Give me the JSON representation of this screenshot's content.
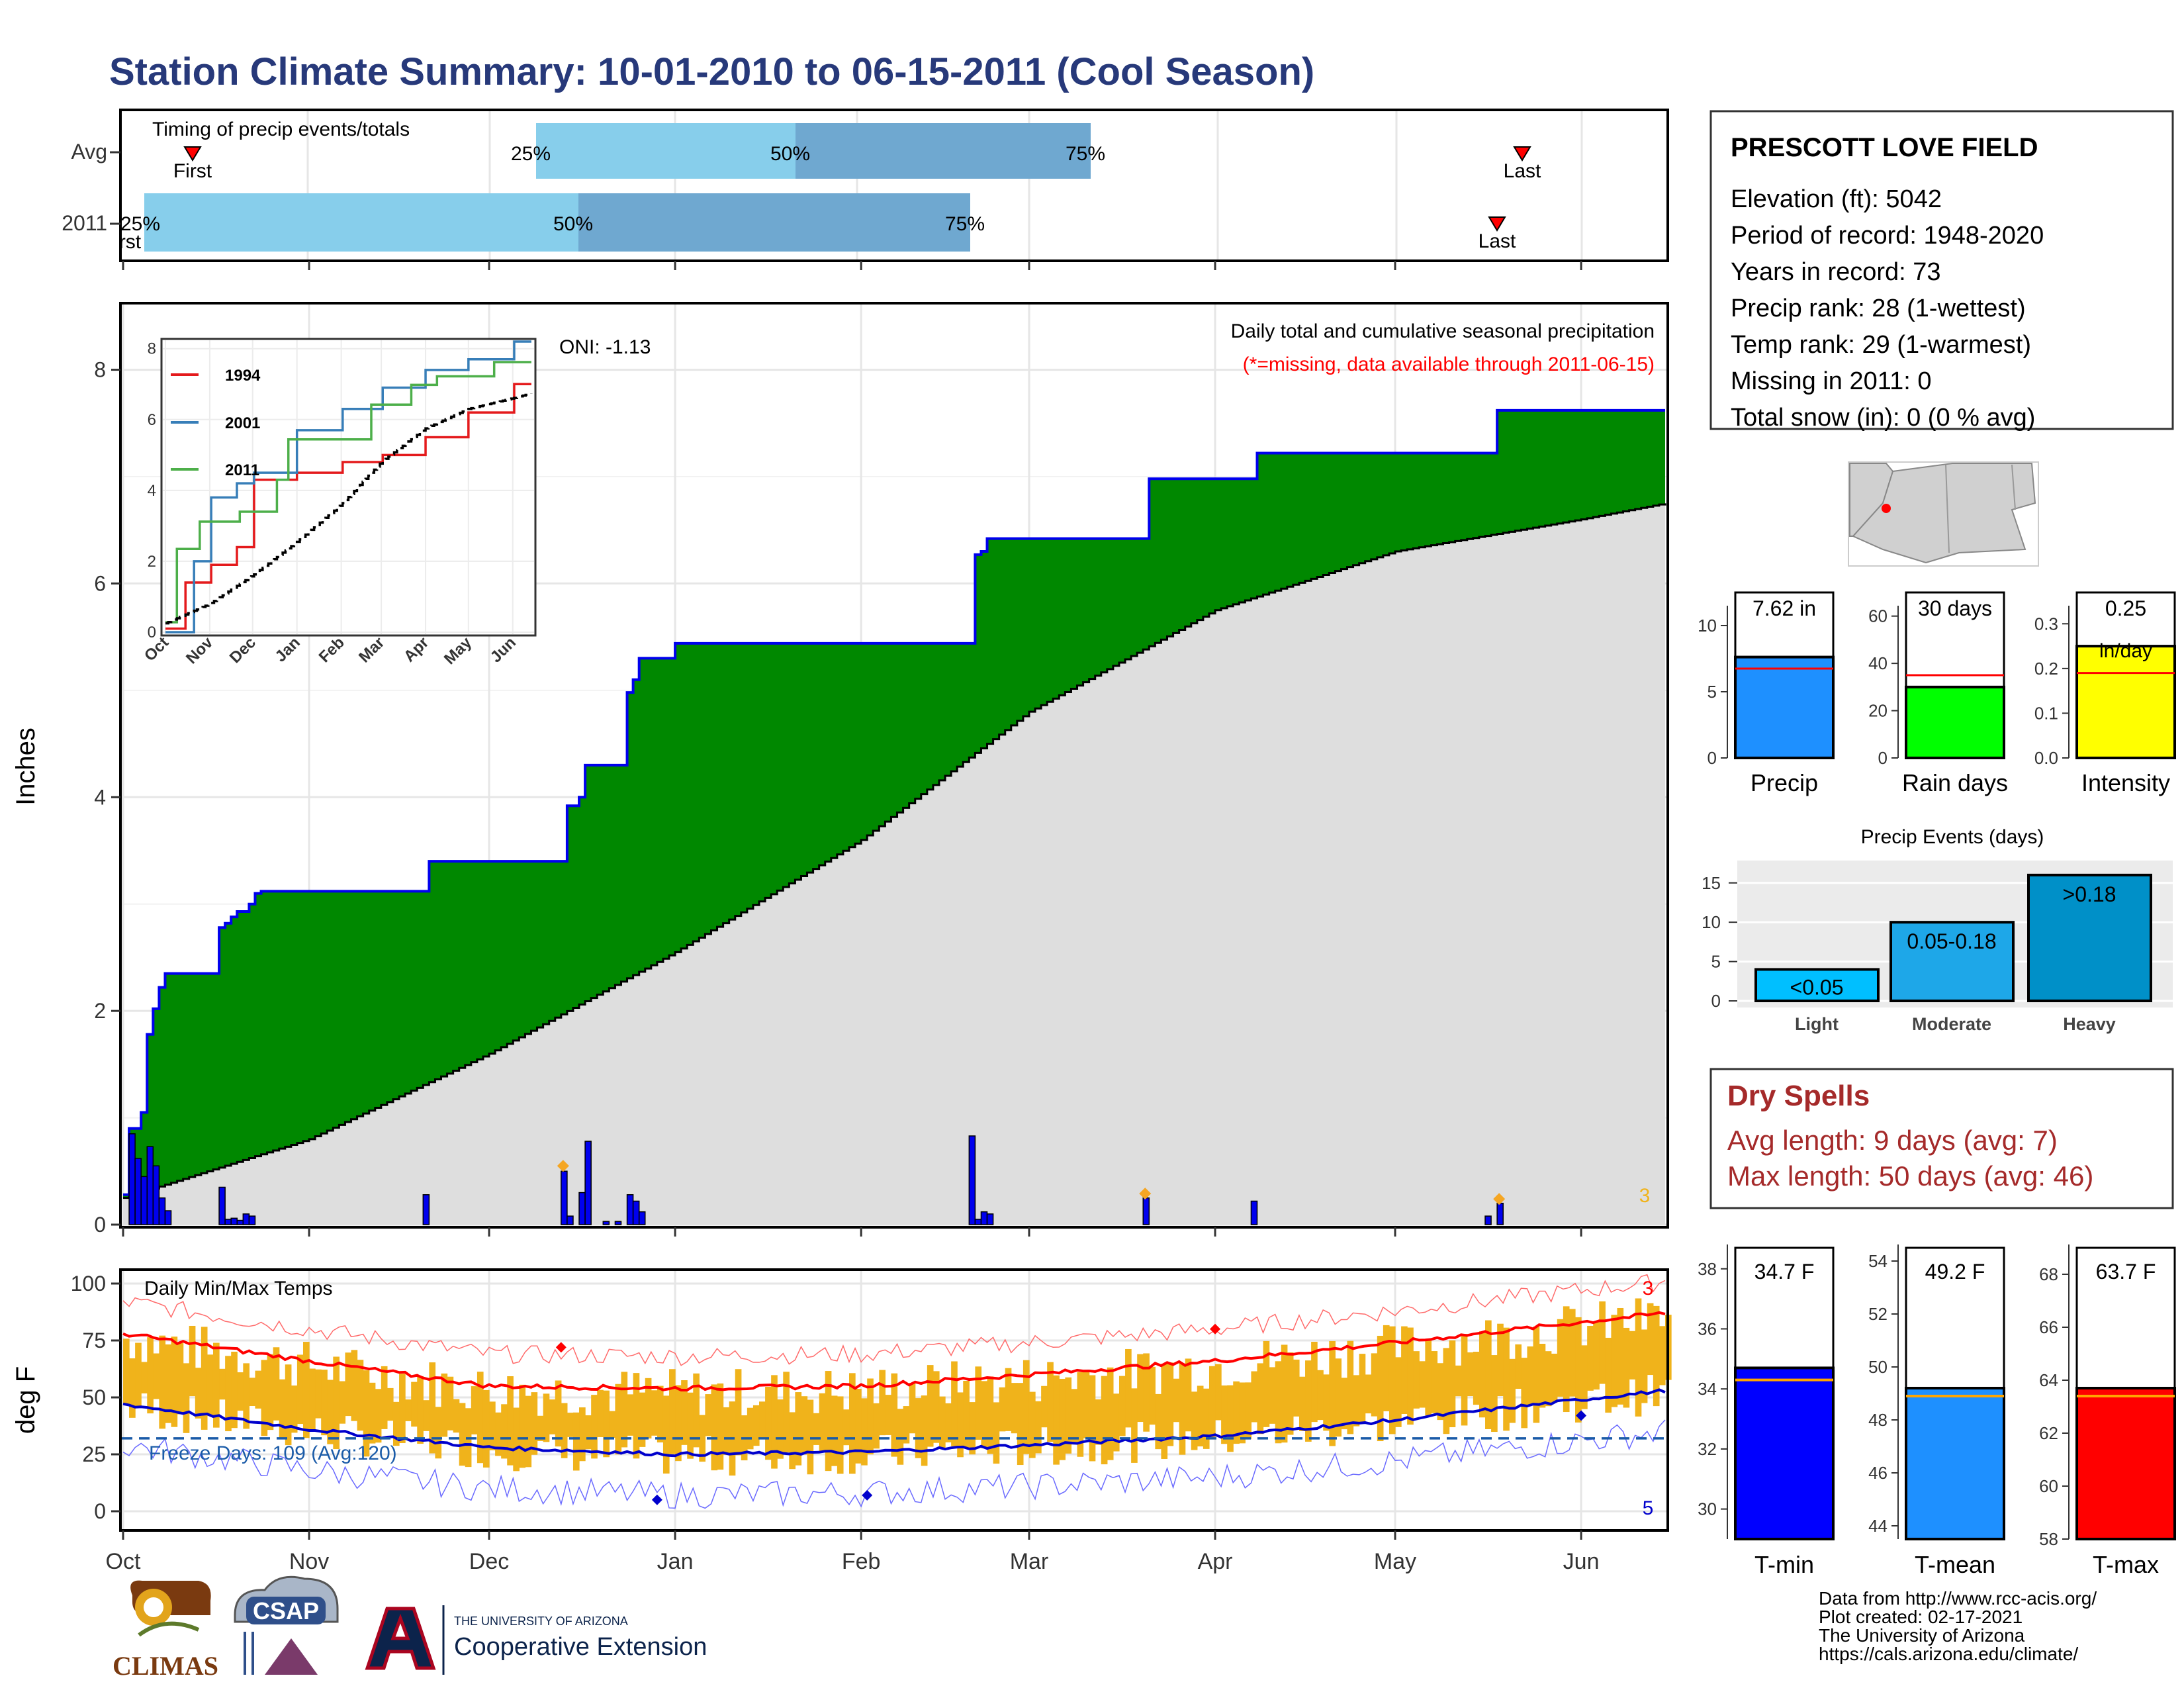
{
  "title": "Station Climate Summary: 10-01-2010 to 06-15-2011 (Cool Season)",
  "colors": {
    "title": "#27397a",
    "green": "#008800",
    "blue_line": "#0000ee",
    "grey_fill": "#dedede",
    "light_blue": "#87ceeb",
    "mid_blue": "#6fa8d0",
    "orange": "#f0b31b",
    "red": "#ff0000",
    "darkred": "#a52a2a"
  },
  "timing": {
    "label": "Timing of precip events/totals",
    "rows": [
      "Avg",
      "2011"
    ],
    "avg": {
      "q25": "25%",
      "q50": "50%",
      "q75": "75%",
      "first": "First",
      "last": "Last"
    },
    "y2011": {
      "q25": "25%",
      "q50": "50%",
      "q75": "75%",
      "first": "First",
      "last": "Last"
    }
  },
  "station": {
    "name": "PRESCOTT LOVE FIELD",
    "lines": [
      "Elevation (ft): 5042",
      "Period of record: 1948-2020",
      "Years in record: 73",
      "Precip rank: 28 (1-wettest)",
      "Temp rank: 29 (1-warmest)",
      "Missing in 2011: 0",
      "Total snow (in): 0 (0 % avg)"
    ]
  },
  "precip_panel": {
    "ylabel": "Inches",
    "heading": "Daily total and cumulative seasonal precipitation",
    "note": "(*=missing, data available through 2011-06-15)",
    "oni": "ONI: -1.13",
    "corner_count": "3",
    "y_ticks": [
      "0",
      "2",
      "4",
      "6",
      "8"
    ]
  },
  "temp_panel": {
    "ylabel": "deg F",
    "heading": "Daily Min/Max Temps",
    "freeze": "Freeze Days: 109 (Avg:120)",
    "count_top": "3",
    "count_bottom": "5",
    "y_ticks": [
      "0",
      "25",
      "50",
      "75",
      "100"
    ]
  },
  "months": [
    "Oct",
    "Nov",
    "Dec",
    "Jan",
    "Feb",
    "Mar",
    "Apr",
    "May",
    "Jun"
  ],
  "inset": {
    "legend": [
      "1994",
      "2001",
      "2011"
    ],
    "y_ticks": [
      "0",
      "2",
      "4",
      "6",
      "8"
    ],
    "months": [
      "Oct",
      "Nov",
      "Dec",
      "Jan",
      "Feb",
      "Mar",
      "Apr",
      "May",
      "Jun"
    ]
  },
  "summary_bars": [
    {
      "label": "Precip",
      "value_text": "7.62 in",
      "ticks": [
        "0",
        "5",
        "10"
      ]
    },
    {
      "label": "Rain days",
      "value_text": "30 days",
      "ticks": [
        "0",
        "20",
        "40",
        "60"
      ]
    },
    {
      "label": "Intensity",
      "value_text": "0.25",
      "value_unit": "in/day",
      "ticks": [
        "0.0",
        "0.1",
        "0.2",
        "0.3"
      ]
    }
  ],
  "events": {
    "title": "Precip Events (days)",
    "ticks": [
      "0",
      "5",
      "10",
      "15"
    ],
    "bars": [
      {
        "cat": "Light",
        "label": "<0.05"
      },
      {
        "cat": "Moderate",
        "label": "0.05-0.18"
      },
      {
        "cat": "Heavy",
        "label": ">0.18"
      }
    ]
  },
  "dry_spells": {
    "title": "Dry Spells",
    "avg": "Avg length: 9 days (avg: 7)",
    "max": "Max length: 50 days (avg: 46)"
  },
  "temp_bars": [
    {
      "label": "T-min",
      "value_text": "34.7 F",
      "ticks": [
        "30",
        "32",
        "34",
        "36",
        "38"
      ]
    },
    {
      "label": "T-mean",
      "value_text": "49.2 F",
      "ticks": [
        "44",
        "46",
        "48",
        "50",
        "52",
        "54"
      ]
    },
    {
      "label": "T-max",
      "value_text": "63.7 F",
      "ticks": [
        "58",
        "60",
        "62",
        "64",
        "66",
        "68"
      ]
    }
  ],
  "credits": [
    "Data from http://www.rcc-acis.org/",
    "Plot created: 02-17-2021",
    "The University of Arizona",
    "https://cals.arizona.edu/climate/"
  ],
  "logos": {
    "climas": "CLIMAS",
    "csap": "CSAP",
    "ua_small": "THE UNIVERSITY OF ARIZONA",
    "ua_big": "Cooperative Extension"
  },
  "chart_data": [
    {
      "type": "area",
      "title": "Daily total and cumulative seasonal precipitation",
      "ylabel": "Inches",
      "ylim": [
        0,
        8.4
      ],
      "x_range": [
        "2010-10-01",
        "2011-06-15"
      ],
      "series": [
        {
          "name": "cumulative 2011",
          "x": [
            "2010-10-01",
            "2010-10-02",
            "2010-10-04",
            "2010-10-05",
            "2010-10-06",
            "2010-10-07",
            "2010-10-08",
            "2010-10-10",
            "2010-10-17",
            "2010-10-18",
            "2010-10-19",
            "2010-10-20",
            "2010-10-22",
            "2010-10-23",
            "2010-10-24",
            "2010-11-20",
            "2010-11-21",
            "2010-12-13",
            "2010-12-14",
            "2010-12-16",
            "2010-12-17",
            "2010-12-24",
            "2010-12-25",
            "2010-12-26",
            "2011-01-01",
            "2011-02-19",
            "2011-02-20",
            "2011-02-21",
            "2011-02-22",
            "2011-03-20",
            "2011-03-21",
            "2011-04-07",
            "2011-04-08",
            "2011-05-17",
            "2011-05-18",
            "2011-06-15"
          ],
          "values": [
            0.28,
            0.9,
            1.05,
            1.78,
            2.02,
            2.22,
            2.35,
            2.35,
            2.78,
            2.82,
            2.88,
            2.93,
            3.0,
            3.1,
            3.12,
            3.12,
            3.4,
            3.4,
            3.92,
            4.0,
            4.3,
            4.98,
            5.1,
            5.3,
            5.44,
            5.44,
            6.27,
            6.3,
            6.42,
            6.42,
            6.98,
            6.98,
            7.22,
            7.22,
            7.62,
            7.62
          ]
        },
        {
          "name": "average cumulative",
          "x": [
            "2010-10-01",
            "2010-11-01",
            "2010-12-01",
            "2011-01-01",
            "2011-02-01",
            "2011-03-01",
            "2011-04-01",
            "2011-05-01",
            "2011-06-01",
            "2011-06-15"
          ],
          "values": [
            0.25,
            0.8,
            1.6,
            2.55,
            3.6,
            4.8,
            5.75,
            6.3,
            6.6,
            6.75
          ]
        },
        {
          "name": "daily precip",
          "x": [
            "2010-10-02",
            "2010-10-03",
            "2010-10-04",
            "2010-10-05",
            "2010-10-06",
            "2010-10-07",
            "2010-10-08",
            "2010-10-17",
            "2010-10-18",
            "2010-10-19",
            "2010-10-20",
            "2010-10-21",
            "2010-10-22",
            "2010-11-20",
            "2010-12-13",
            "2010-12-14",
            "2010-12-16",
            "2010-12-17",
            "2010-12-20",
            "2010-12-22",
            "2010-12-24",
            "2010-12-25",
            "2010-12-26",
            "2011-02-19",
            "2011-02-20",
            "2011-02-21",
            "2011-02-22",
            "2011-03-20",
            "2011-04-07",
            "2011-05-16",
            "2011-05-18"
          ],
          "values": [
            0.85,
            0.62,
            0.45,
            0.73,
            0.55,
            0.25,
            0.13,
            0.35,
            0.05,
            0.06,
            0.04,
            0.1,
            0.08,
            0.28,
            0.5,
            0.08,
            0.3,
            0.78,
            0.03,
            0.03,
            0.28,
            0.22,
            0.12,
            0.83,
            0.05,
            0.12,
            0.1,
            0.25,
            0.22,
            0.08,
            0.2
          ]
        }
      ]
    },
    {
      "type": "line",
      "title": "",
      "legend": [
        "1994",
        "2001",
        "2011"
      ],
      "ylim": [
        0,
        8
      ],
      "series": [
        {
          "name": "1994",
          "x": [
            "2010-10-01",
            "2010-10-15",
            "2010-11-01",
            "2010-11-20",
            "2010-12-01",
            "2011-01-01",
            "2011-02-01",
            "2011-03-01",
            "2011-04-01",
            "2011-05-01",
            "2011-06-01",
            "2011-06-15"
          ],
          "values": [
            0.1,
            1.4,
            1.9,
            2.4,
            4.3,
            4.5,
            4.8,
            5.0,
            5.5,
            6.2,
            7.0,
            7.2
          ]
        },
        {
          "name": "2001",
          "x": [
            "2010-10-01",
            "2010-10-20",
            "2010-11-01",
            "2010-11-20",
            "2010-12-01",
            "2011-01-01",
            "2011-02-01",
            "2011-03-01",
            "2011-04-01",
            "2011-05-01",
            "2011-06-01",
            "2011-06-15"
          ],
          "values": [
            0.0,
            2.0,
            3.8,
            4.2,
            4.5,
            5.7,
            6.3,
            6.9,
            7.4,
            7.7,
            8.2,
            8.3
          ]
        },
        {
          "name": "2011",
          "x": [
            "2010-10-01",
            "2010-10-08",
            "2010-10-24",
            "2010-11-21",
            "2010-12-17",
            "2010-12-26",
            "2011-02-22",
            "2011-03-21",
            "2011-04-08",
            "2011-05-18",
            "2011-06-15"
          ],
          "values": [
            0.28,
            2.35,
            3.12,
            3.4,
            4.3,
            5.44,
            6.42,
            6.98,
            7.22,
            7.62,
            7.62
          ]
        },
        {
          "name": "average",
          "x": [
            "2010-10-01",
            "2010-11-01",
            "2010-12-01",
            "2011-01-01",
            "2011-02-01",
            "2011-03-01",
            "2011-04-01",
            "2011-05-01",
            "2011-06-01",
            "2011-06-15"
          ],
          "values": [
            0.25,
            0.8,
            1.6,
            2.55,
            3.6,
            4.8,
            5.75,
            6.3,
            6.6,
            6.75
          ]
        }
      ]
    },
    {
      "type": "bar",
      "title": "Daily Min/Max Temps",
      "ylabel": "deg F",
      "ylim": [
        -10,
        105
      ],
      "series": [
        {
          "name": "avg max",
          "x": [
            "2010-10-01",
            "2010-11-01",
            "2010-12-01",
            "2011-01-01",
            "2011-02-01",
            "2011-03-01",
            "2011-04-01",
            "2011-05-01",
            "2011-06-01",
            "2011-06-15"
          ],
          "values": [
            78,
            66,
            55,
            54,
            55,
            60,
            66,
            74,
            83,
            87
          ]
        },
        {
          "name": "avg min",
          "x": [
            "2010-10-01",
            "2010-11-01",
            "2010-12-01",
            "2011-01-01",
            "2011-02-01",
            "2011-03-01",
            "2011-04-01",
            "2011-05-01",
            "2011-06-01",
            "2011-06-15"
          ],
          "values": [
            47,
            36,
            28,
            25,
            26,
            29,
            33,
            40,
            49,
            53
          ]
        },
        {
          "name": "freeze threshold",
          "values": [
            32
          ]
        }
      ]
    },
    {
      "type": "bar",
      "categories": [
        "Precip",
        "Rain days",
        "Intensity"
      ],
      "values": [
        7.62,
        30,
        0.25
      ],
      "averages": [
        6.75,
        35,
        0.19
      ]
    },
    {
      "type": "bar",
      "title": "Precip Events (days)",
      "categories": [
        "Light",
        "Moderate",
        "Heavy"
      ],
      "values": [
        4,
        10,
        16
      ],
      "ylim": [
        0,
        17
      ]
    },
    {
      "type": "bar",
      "categories": [
        "T-min",
        "T-mean",
        "T-max"
      ],
      "values": [
        34.7,
        49.2,
        63.7
      ],
      "averages": [
        34.3,
        48.9,
        63.4
      ]
    }
  ]
}
